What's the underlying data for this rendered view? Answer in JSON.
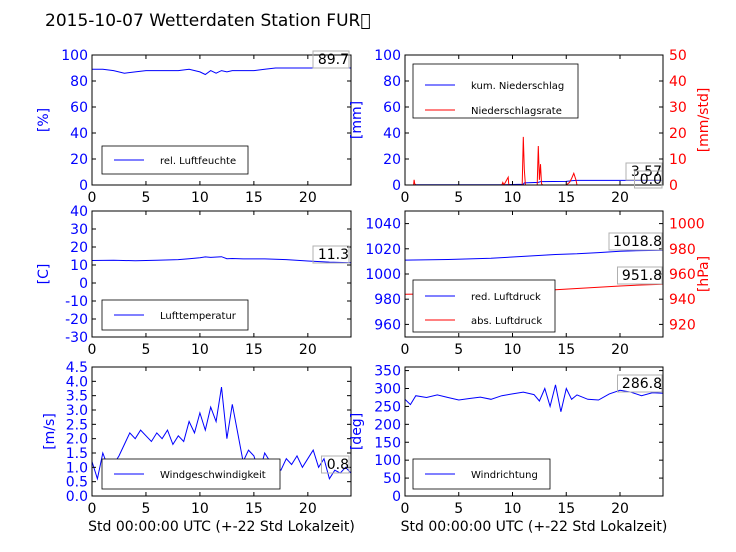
{
  "title": "2015-10-07 Wetterdaten Station FUR\u0000",
  "xlabel": "Std 00:00:00 UTC (+-22 Std Lokalzeit)",
  "colors": {
    "primary": "#0000ff",
    "secondary": "#ff0000",
    "axis": "#000000",
    "legend_border": "#000000",
    "value_box": "#b0b0b0"
  },
  "chart_data": [
    {
      "id": "humidity",
      "type": "line",
      "xlim": [
        0,
        24
      ],
      "x_ticks": [
        0,
        5,
        10,
        15,
        20
      ],
      "ylim": [
        0,
        100
      ],
      "y_ticks": [
        0,
        20,
        40,
        60,
        80,
        100
      ],
      "ylabel": "[%]",
      "legend": {
        "placement": "lower-left",
        "entries": [
          "rel. Luftfeuchte"
        ]
      },
      "annotations": [
        "89.7"
      ],
      "series": [
        {
          "name": "rel. Luftfeuchte",
          "axis": "left",
          "color": "#0000ff",
          "x": [
            0,
            1,
            2,
            3,
            4,
            5,
            6,
            7,
            8,
            9,
            10,
            10.5,
            11,
            11.5,
            12,
            12.5,
            13,
            14,
            15,
            16,
            17,
            18,
            19,
            20,
            21,
            22,
            23,
            24
          ],
          "y": [
            89,
            89,
            88,
            86,
            87,
            88,
            88,
            88,
            88,
            89,
            87,
            85,
            88,
            86,
            88,
            87,
            88,
            88,
            88,
            89,
            90,
            90,
            90,
            90,
            90,
            90,
            90,
            90
          ]
        }
      ]
    },
    {
      "id": "precipitation",
      "type": "line",
      "xlim": [
        0,
        24
      ],
      "x_ticks": [
        0,
        5,
        10,
        15,
        20
      ],
      "ylim": [
        0,
        100
      ],
      "y_ticks": [
        0,
        20,
        40,
        60,
        80,
        100
      ],
      "ylabel": "[mm]",
      "y2lim": [
        0,
        50
      ],
      "y2_ticks": [
        0,
        10,
        20,
        30,
        40,
        50
      ],
      "y2label": "[mm/std]",
      "legend": {
        "placement": "top-left",
        "entries": [
          "kum. Niederschlag",
          "Niederschlagsrate"
        ]
      },
      "annotations": [
        "3.57",
        "0.0"
      ],
      "series": [
        {
          "name": "kum. Niederschlag",
          "axis": "left",
          "color": "#0000ff",
          "x": [
            0,
            0.8,
            1,
            9,
            10,
            11,
            11.1,
            12.4,
            12.6,
            15,
            15.6,
            16,
            20,
            24
          ],
          "y": [
            0,
            0,
            0.2,
            0.2,
            0.4,
            0.5,
            1.6,
            2.0,
            2.6,
            2.8,
            3.4,
            3.57,
            3.57,
            3.57
          ]
        },
        {
          "name": "Niederschlagsrate",
          "axis": "right",
          "color": "#ff0000",
          "x": [
            0,
            0.8,
            0.85,
            0.9,
            1.0,
            9.0,
            9.1,
            9.2,
            9.6,
            9.65,
            9.7,
            10.9,
            11.0,
            11.1,
            11.2,
            12.3,
            12.4,
            12.5,
            12.6,
            12.7,
            12.8,
            15.0,
            15.3,
            15.5,
            15.7,
            15.9,
            16.0,
            24
          ],
          "y": [
            0,
            0,
            2.0,
            0.5,
            0,
            0,
            1.0,
            0,
            3.0,
            0.5,
            0,
            0,
            18.5,
            6.0,
            0,
            0,
            15.0,
            2.0,
            8.0,
            0.5,
            0,
            0,
            1.0,
            2.5,
            4.5,
            2.0,
            0,
            0
          ]
        }
      ]
    },
    {
      "id": "temperature",
      "type": "line",
      "xlim": [
        0,
        24
      ],
      "x_ticks": [
        0,
        5,
        10,
        15,
        20
      ],
      "ylim": [
        -30,
        40
      ],
      "y_ticks": [
        -30,
        -20,
        -10,
        0,
        10,
        20,
        30,
        40
      ],
      "ylabel": "[C]",
      "legend": {
        "placement": "lower-left",
        "entries": [
          "Lufttemperatur"
        ]
      },
      "annotations": [
        "11.3"
      ],
      "series": [
        {
          "name": "Lufttemperatur",
          "axis": "left",
          "color": "#0000ff",
          "x": [
            0,
            2,
            4,
            6,
            8,
            9,
            10,
            10.5,
            11,
            12,
            12.5,
            13,
            14,
            16,
            18,
            20,
            22,
            24
          ],
          "y": [
            12.5,
            12.6,
            12.4,
            12.6,
            13.0,
            13.5,
            14.0,
            14.5,
            14.2,
            14.6,
            13.5,
            13.6,
            13.4,
            13.4,
            13.0,
            12.2,
            11.6,
            11.3
          ]
        }
      ]
    },
    {
      "id": "pressure",
      "type": "line",
      "xlim": [
        0,
        24
      ],
      "x_ticks": [
        0,
        5,
        10,
        15,
        20
      ],
      "ylim": [
        950,
        1050
      ],
      "y_ticks": [
        960,
        980,
        1000,
        1020,
        1040
      ],
      "ylabel": "",
      "y2lim": [
        910,
        1010
      ],
      "y2_ticks": [
        920,
        940,
        960,
        980,
        1000
      ],
      "y2label": "[hPa]",
      "legend": {
        "placement": "lower-left",
        "entries": [
          "red. Luftdruck",
          "abs. Luftdruck"
        ]
      },
      "annotations": [
        "1018.8",
        "951.8"
      ],
      "series": [
        {
          "name": "red. Luftdruck",
          "axis": "left",
          "color": "#0000ff",
          "x": [
            0,
            4,
            8,
            10,
            12,
            14,
            16,
            18,
            20,
            22,
            24
          ],
          "y": [
            1011,
            1011.5,
            1012.5,
            1013.5,
            1014.5,
            1015.5,
            1016,
            1017,
            1018,
            1018.6,
            1018.8
          ]
        },
        {
          "name": "abs. Luftdruck",
          "axis": "right",
          "color": "#ff0000",
          "x": [
            0,
            4,
            8,
            10,
            12,
            14,
            16,
            18,
            20,
            22,
            24
          ],
          "y": [
            944,
            944.3,
            945.3,
            946,
            946.8,
            947.5,
            948.5,
            949.5,
            950.5,
            951.3,
            951.8
          ]
        }
      ]
    },
    {
      "id": "wind-speed",
      "type": "line",
      "xlim": [
        0,
        24
      ],
      "x_ticks": [
        0,
        5,
        10,
        15,
        20
      ],
      "ylim": [
        0,
        4.5
      ],
      "y_ticks": [
        0.0,
        0.5,
        1.0,
        1.5,
        2.0,
        2.5,
        3.0,
        3.5,
        4.0,
        4.5
      ],
      "ylabel": "[m/s]",
      "legend": {
        "placement": "lower-left",
        "entries": [
          "Windgeschwindigkeit"
        ]
      },
      "annotations": [
        "0.8"
      ],
      "series": [
        {
          "name": "Windgeschwindigkeit",
          "axis": "left",
          "color": "#0000ff",
          "x": [
            0,
            0.5,
            1,
            1.5,
            2,
            2.5,
            3,
            3.5,
            4,
            4.5,
            5,
            5.5,
            6,
            6.5,
            7,
            7.5,
            8,
            8.5,
            9,
            9.5,
            10,
            10.5,
            11,
            11.5,
            12,
            12.5,
            13,
            13.5,
            14,
            14.5,
            15,
            15.5,
            16,
            16.5,
            17,
            17.5,
            18,
            18.5,
            19,
            19.5,
            20,
            20.5,
            21,
            21.5,
            22,
            22.5,
            23,
            23.5,
            24
          ],
          "y": [
            1.2,
            0.6,
            1.5,
            1.0,
            1.1,
            1.4,
            1.8,
            2.2,
            2.0,
            2.3,
            2.1,
            1.9,
            2.2,
            2.0,
            2.3,
            1.8,
            2.1,
            1.9,
            2.6,
            2.2,
            2.9,
            2.3,
            3.1,
            2.6,
            3.8,
            2.0,
            3.2,
            2.2,
            1.2,
            1.6,
            1.4,
            0.8,
            1.5,
            1.2,
            1.0,
            0.9,
            1.3,
            1.1,
            1.4,
            1.0,
            1.3,
            1.6,
            1.0,
            1.3,
            0.6,
            0.9,
            0.8,
            1.0,
            0.8
          ]
        }
      ]
    },
    {
      "id": "wind-direction",
      "type": "line",
      "xlim": [
        0,
        24
      ],
      "x_ticks": [
        0,
        5,
        10,
        15,
        20
      ],
      "ylim": [
        0,
        360
      ],
      "y_ticks": [
        0,
        50,
        100,
        150,
        200,
        250,
        300,
        350
      ],
      "ylabel": "[deg]",
      "legend": {
        "placement": "lower-left",
        "entries": [
          "Windrichtung"
        ]
      },
      "annotations": [
        "286.8"
      ],
      "series": [
        {
          "name": "Windrichtung",
          "axis": "left",
          "color": "#0000ff",
          "x": [
            0,
            0.5,
            1,
            2,
            3,
            4,
            5,
            6,
            7,
            8,
            9,
            10,
            11,
            12,
            12.5,
            13,
            13.5,
            14,
            14.5,
            15,
            15.5,
            16,
            17,
            18,
            19,
            20,
            21,
            22,
            23,
            24
          ],
          "y": [
            270,
            255,
            280,
            275,
            282,
            275,
            268,
            272,
            276,
            270,
            280,
            285,
            290,
            283,
            265,
            300,
            250,
            310,
            235,
            300,
            270,
            282,
            270,
            268,
            285,
            295,
            290,
            280,
            288,
            287
          ]
        }
      ]
    }
  ]
}
